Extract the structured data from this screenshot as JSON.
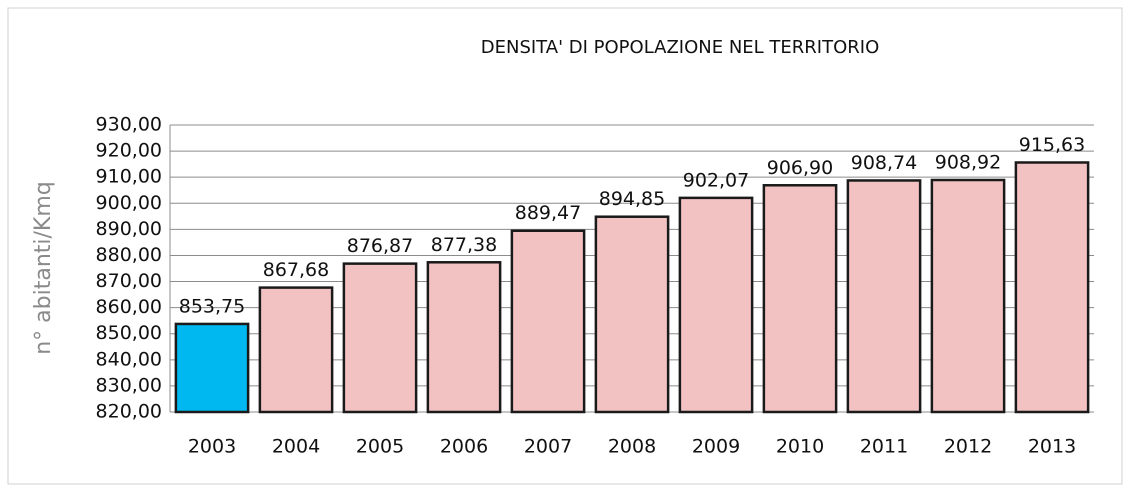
{
  "chart_data": {
    "type": "bar",
    "title": "DENSITA' DI POPOLAZIONE NEL TERRITORIO",
    "y_label": "n° abitanti/Kmq",
    "categories": [
      "2003",
      "2004",
      "2005",
      "2006",
      "2007",
      "2008",
      "2009",
      "2010",
      "2011",
      "2012",
      "2013"
    ],
    "values": [
      853.75,
      867.68,
      876.87,
      877.38,
      889.47,
      894.85,
      902.07,
      906.9,
      908.74,
      908.92,
      915.63
    ],
    "value_labels": [
      "853,75",
      "867,68",
      "876,87",
      "877,38",
      "889,47",
      "894,85",
      "902,07",
      "906,90",
      "908,74",
      "908,92",
      "915,63"
    ],
    "colors": [
      "#00b8f0",
      "#f2c2c2",
      "#f2c2c2",
      "#f2c2c2",
      "#f2c2c2",
      "#f2c2c2",
      "#f2c2c2",
      "#f2c2c2",
      "#f2c2c2",
      "#f2c2c2",
      "#f2c2c2"
    ],
    "ylim": [
      820,
      930
    ],
    "yticks": [
      {
        "value": 820,
        "label": "820,00"
      },
      {
        "value": 830,
        "label": "830,00"
      },
      {
        "value": 840,
        "label": "840,00"
      },
      {
        "value": 850,
        "label": "850,00"
      },
      {
        "value": 860,
        "label": "860,00"
      },
      {
        "value": 870,
        "label": "870,00"
      },
      {
        "value": 880,
        "label": "880,00"
      },
      {
        "value": 890,
        "label": "890,00"
      },
      {
        "value": 900,
        "label": "900,00"
      },
      {
        "value": 910,
        "label": "910,00"
      },
      {
        "value": 920,
        "label": "920,00"
      },
      {
        "value": 930,
        "label": "930,00"
      }
    ],
    "grid": true
  }
}
